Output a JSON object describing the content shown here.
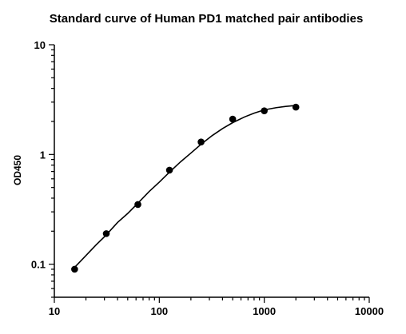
{
  "chart_data": {
    "type": "scatter",
    "title": "Standard curve of Human PD1 matched pair antibodies",
    "xlabel": "",
    "ylabel": "OD450",
    "x_scale": "log",
    "y_scale": "log",
    "xlim": [
      10,
      10000
    ],
    "ylim": [
      0.05,
      10
    ],
    "x_ticks": [
      "10",
      "100",
      "1000",
      "10000"
    ],
    "y_ticks": [
      "0.1",
      "1",
      "10"
    ],
    "grid": false,
    "legend": "none",
    "series": [
      {
        "x": [
          15.6,
          31.25,
          62.5,
          125,
          250,
          500,
          1000,
          2000
        ],
        "y": [
          0.09,
          0.19,
          0.35,
          0.72,
          1.3,
          2.1,
          2.5,
          2.7
        ]
      }
    ],
    "fit_curve": {
      "x": [
        15,
        20,
        25,
        31.25,
        40,
        50,
        62.5,
        80,
        100,
        125,
        160,
        200,
        250,
        320,
        400,
        500,
        650,
        800,
        1000,
        1300,
        1600,
        2000
      ],
      "y": [
        0.09,
        0.12,
        0.15,
        0.185,
        0.24,
        0.29,
        0.36,
        0.46,
        0.56,
        0.69,
        0.86,
        1.03,
        1.24,
        1.49,
        1.72,
        1.95,
        2.2,
        2.38,
        2.55,
        2.67,
        2.74,
        2.8
      ]
    },
    "colors": {
      "marker": "#000000",
      "line": "#000000",
      "axis": "#000000"
    }
  }
}
